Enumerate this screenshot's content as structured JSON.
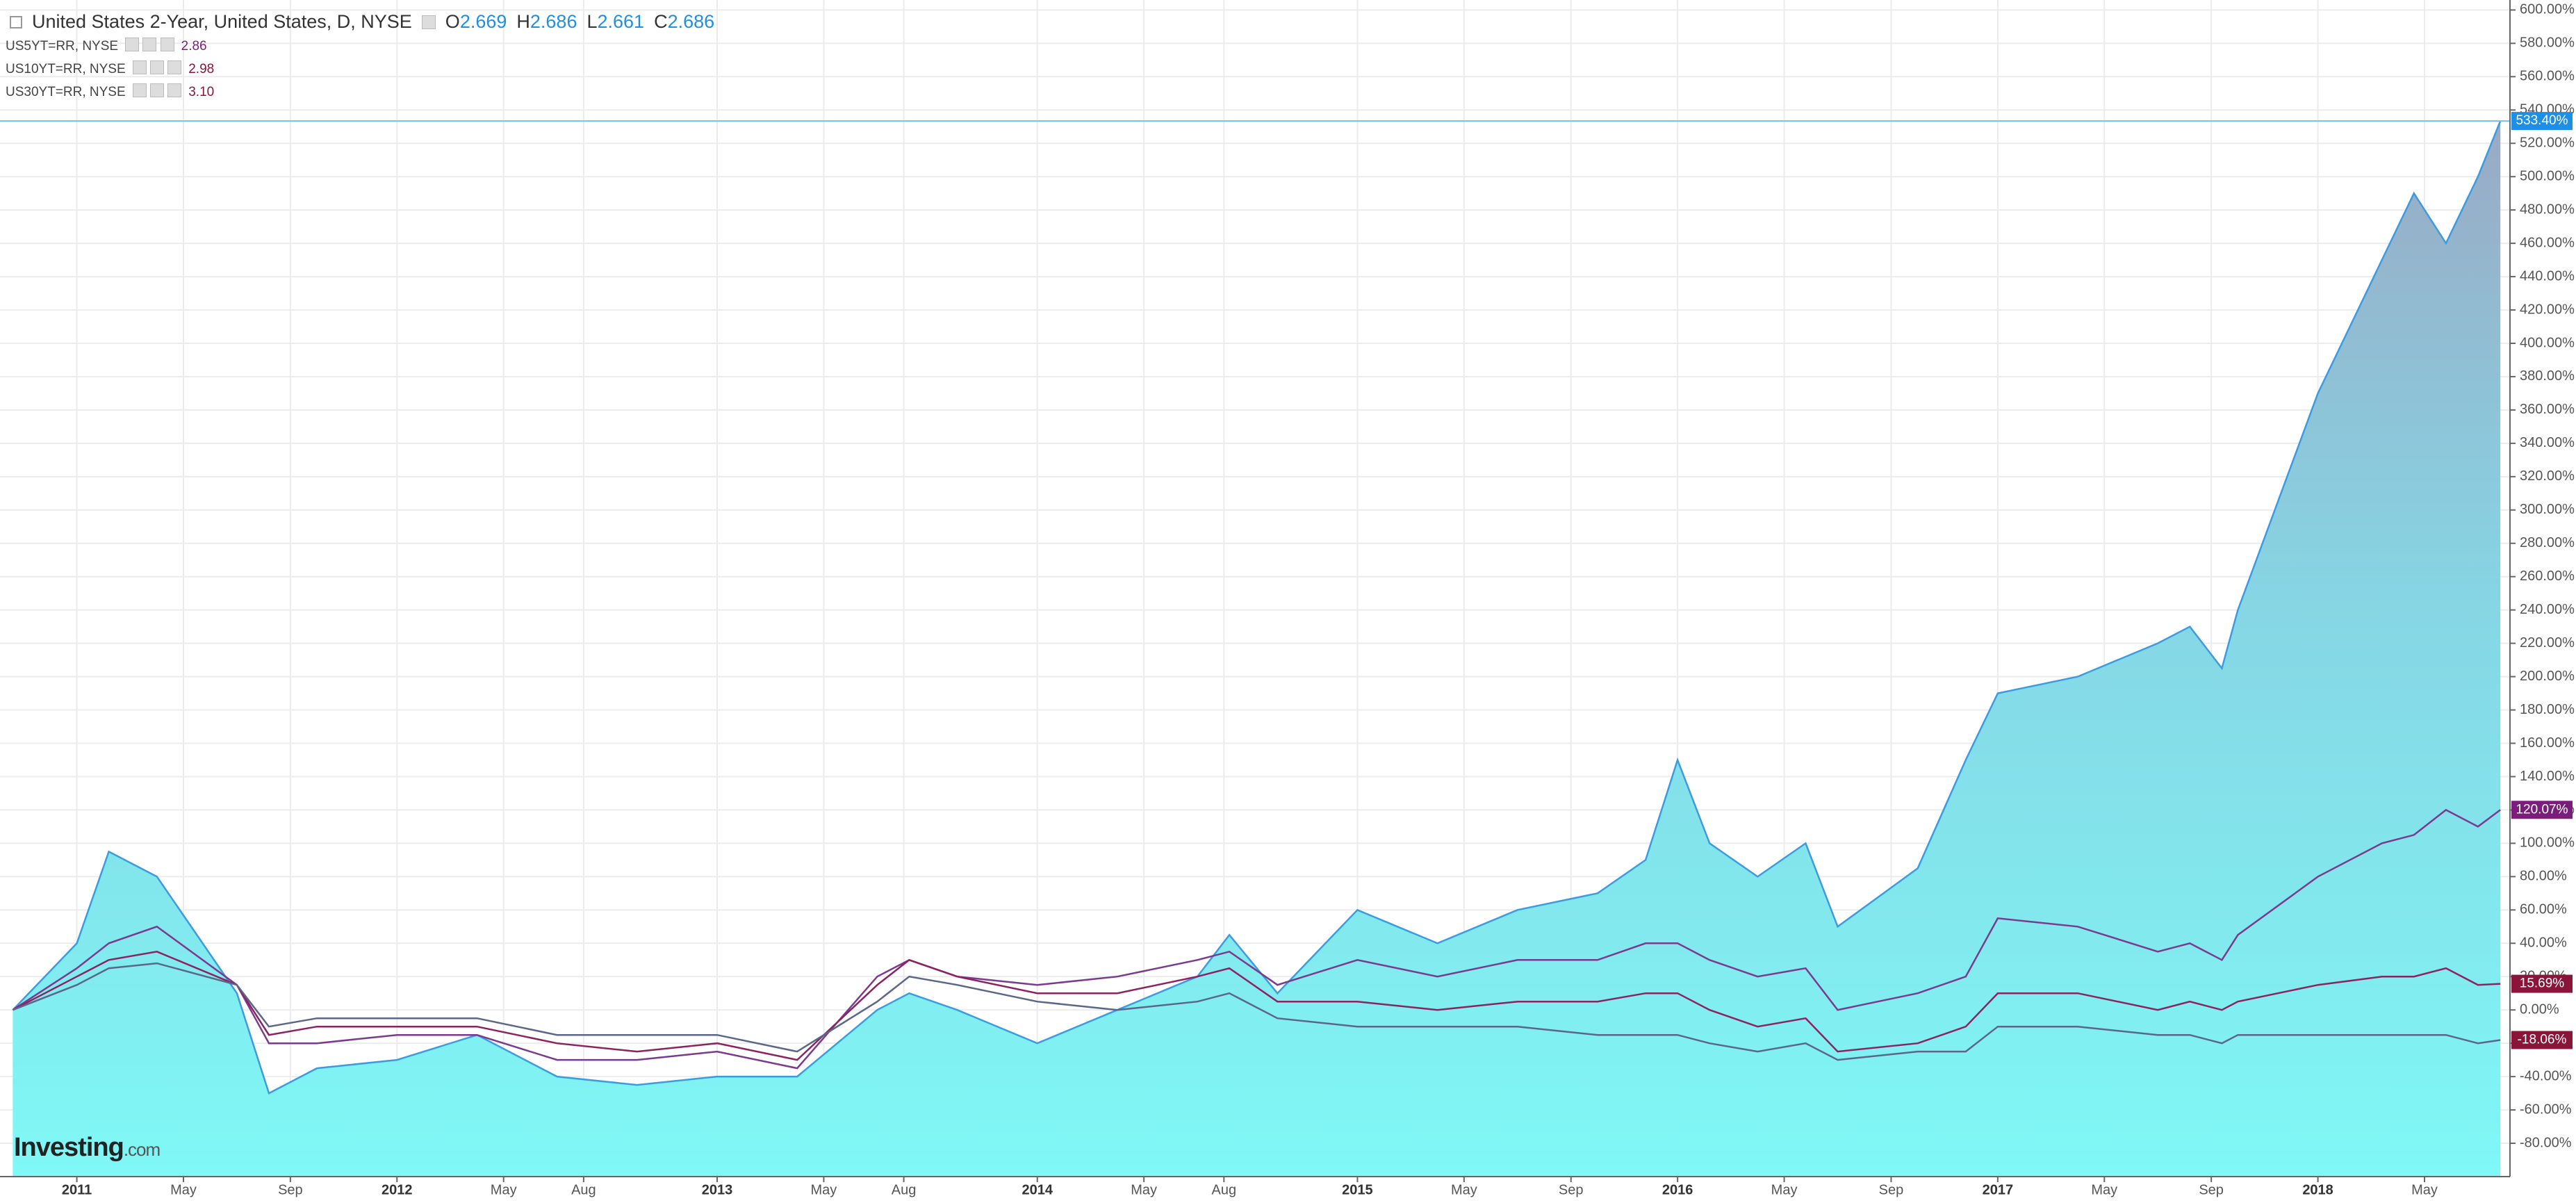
{
  "chart_data": {
    "type": "line",
    "title": "United States 2-Year, United States, D, NYSE",
    "ohlc": [
      {
        "label": "O",
        "value": 2.669
      },
      {
        "label": "H",
        "value": 2.686
      },
      {
        "label": "L",
        "value": 2.661
      },
      {
        "label": "C",
        "value": 2.686
      }
    ],
    "watermark": {
      "brand": "Investing",
      "suffix": ".com"
    },
    "x": [
      2010.8,
      2011.0,
      2011.1,
      2011.25,
      2011.5,
      2011.6,
      2011.75,
      2012.0,
      2012.25,
      2012.5,
      2012.75,
      2013.0,
      2013.25,
      2013.5,
      2013.6,
      2013.75,
      2014.0,
      2014.25,
      2014.5,
      2014.6,
      2014.75,
      2015.0,
      2015.25,
      2015.5,
      2015.75,
      2015.9,
      2016.0,
      2016.1,
      2016.25,
      2016.4,
      2016.5,
      2016.75,
      2016.9,
      2017.0,
      2017.25,
      2017.5,
      2017.6,
      2017.7,
      2017.75,
      2018.0,
      2018.2,
      2018.3,
      2018.4,
      2018.5,
      2018.57
    ],
    "series": [
      {
        "name": "United States 2-Year",
        "color": "#3d9be0",
        "area": true,
        "last_value_label": "533.40%",
        "label_color": "#1e8fe6",
        "values": [
          0,
          40,
          95,
          80,
          10,
          -50,
          -35,
          -30,
          -15,
          -40,
          -45,
          -40,
          -40,
          0,
          10,
          0,
          -20,
          0,
          20,
          45,
          10,
          60,
          40,
          60,
          70,
          90,
          150,
          100,
          80,
          100,
          50,
          85,
          150,
          190,
          200,
          220,
          230,
          205,
          240,
          370,
          450,
          490,
          460,
          500,
          533.4
        ]
      },
      {
        "name": "US5YT=RR, NYSE",
        "color": "#7a3a8e",
        "quote": 2.86,
        "last_value_label": "120.07%",
        "label_color": "#7b1e7b",
        "values": [
          0,
          25,
          40,
          50,
          15,
          -20,
          -20,
          -15,
          -15,
          -30,
          -30,
          -25,
          -35,
          20,
          30,
          20,
          15,
          20,
          30,
          35,
          15,
          30,
          20,
          30,
          30,
          40,
          40,
          30,
          20,
          25,
          0,
          10,
          20,
          55,
          50,
          35,
          40,
          30,
          45,
          80,
          100,
          105,
          120,
          110,
          120.07
        ]
      },
      {
        "name": "US10YT=RR, NYSE",
        "color": "#8b2360",
        "quote": 2.98,
        "last_value_label": "15.69%",
        "label_color": "#8b1538",
        "values": [
          0,
          20,
          30,
          35,
          15,
          -15,
          -10,
          -10,
          -10,
          -20,
          -25,
          -20,
          -30,
          15,
          30,
          20,
          10,
          10,
          20,
          25,
          5,
          5,
          0,
          5,
          5,
          10,
          10,
          0,
          -10,
          -5,
          -25,
          -20,
          -10,
          10,
          10,
          0,
          5,
          0,
          5,
          15,
          20,
          20,
          25,
          15,
          15.69
        ]
      },
      {
        "name": "US30YT=RR, NYSE",
        "color": "#5b6688",
        "quote": {
          "value": 3.1,
          "label": "3.10"
        },
        "last_value_label": "-18.06%",
        "label_color": "#8b1538",
        "values": [
          0,
          15,
          25,
          28,
          15,
          -10,
          -5,
          -5,
          -5,
          -15,
          -15,
          -15,
          -25,
          5,
          20,
          15,
          5,
          0,
          5,
          10,
          -5,
          -10,
          -10,
          -10,
          -15,
          -15,
          -15,
          -20,
          -25,
          -20,
          -30,
          -25,
          -25,
          -10,
          -10,
          -15,
          -15,
          -20,
          -15,
          -15,
          -15,
          -15,
          -15,
          -20,
          -18.06
        ]
      }
    ],
    "xlim": [
      2010.76,
      2018.6
    ],
    "xticks": [
      {
        "value": 2011,
        "label": "2011"
      },
      {
        "value": 2011.333,
        "label": "May"
      },
      {
        "value": 2011.667,
        "label": "Sep"
      },
      {
        "value": 2012,
        "label": "2012"
      },
      {
        "value": 2012.333,
        "label": "May"
      },
      {
        "value": 2012.583,
        "label": "Aug"
      },
      {
        "value": 2013,
        "label": "2013"
      },
      {
        "value": 2013.333,
        "label": "May"
      },
      {
        "value": 2013.583,
        "label": "Aug"
      },
      {
        "value": 2014,
        "label": "2014"
      },
      {
        "value": 2014.333,
        "label": "May"
      },
      {
        "value": 2014.583,
        "label": "Aug"
      },
      {
        "value": 2015,
        "label": "2015"
      },
      {
        "value": 2015.333,
        "label": "May"
      },
      {
        "value": 2015.667,
        "label": "Sep"
      },
      {
        "value": 2016,
        "label": "2016"
      },
      {
        "value": 2016.333,
        "label": "May"
      },
      {
        "value": 2016.667,
        "label": "Sep"
      },
      {
        "value": 2017,
        "label": "2017"
      },
      {
        "value": 2017.333,
        "label": "May"
      },
      {
        "value": 2017.667,
        "label": "Sep"
      },
      {
        "value": 2018,
        "label": "2018"
      },
      {
        "value": 2018.333,
        "label": "May"
      }
    ],
    "ylim": [
      -100,
      606
    ],
    "yticks": [
      {
        "value": 600,
        "label": "600.00%"
      },
      {
        "value": 580,
        "label": "580.00%"
      },
      {
        "value": 560,
        "label": "560.00%"
      },
      {
        "value": 540,
        "label": "540.00%"
      },
      {
        "value": 520,
        "label": "520.00%"
      },
      {
        "value": 500,
        "label": "500.00%"
      },
      {
        "value": 480,
        "label": "480.00%"
      },
      {
        "value": 460,
        "label": "460.00%"
      },
      {
        "value": 440,
        "label": "440.00%"
      },
      {
        "value": 420,
        "label": "420.00%"
      },
      {
        "value": 400,
        "label": "400.00%"
      },
      {
        "value": 380,
        "label": "380.00%"
      },
      {
        "value": 360,
        "label": "360.00%"
      },
      {
        "value": 340,
        "label": "340.00%"
      },
      {
        "value": 320,
        "label": "320.00%"
      },
      {
        "value": 300,
        "label": "300.00%"
      },
      {
        "value": 280,
        "label": "280.00%"
      },
      {
        "value": 260,
        "label": "260.00%"
      },
      {
        "value": 240,
        "label": "240.00%"
      },
      {
        "value": 220,
        "label": "220.00%"
      },
      {
        "value": 200,
        "label": "200.00%"
      },
      {
        "value": 180,
        "label": "180.00%"
      },
      {
        "value": 160,
        "label": "160.00%"
      },
      {
        "value": 140,
        "label": "140.00%"
      },
      {
        "value": 120,
        "label": "120.00%"
      },
      {
        "value": 100,
        "label": "100.00%"
      },
      {
        "value": 80,
        "label": "80.00%"
      },
      {
        "value": 60,
        "label": "60.00%"
      },
      {
        "value": 40,
        "label": "40.00%"
      },
      {
        "value": 20,
        "label": "20.00%"
      },
      {
        "value": 0,
        "label": "0.00%"
      },
      {
        "value": -20,
        "label": "-20.00%"
      },
      {
        "value": -40,
        "label": "-40.00%"
      },
      {
        "value": -60,
        "label": "-60.00%"
      },
      {
        "value": -80,
        "label": "-80.00%"
      }
    ],
    "grid": true
  }
}
